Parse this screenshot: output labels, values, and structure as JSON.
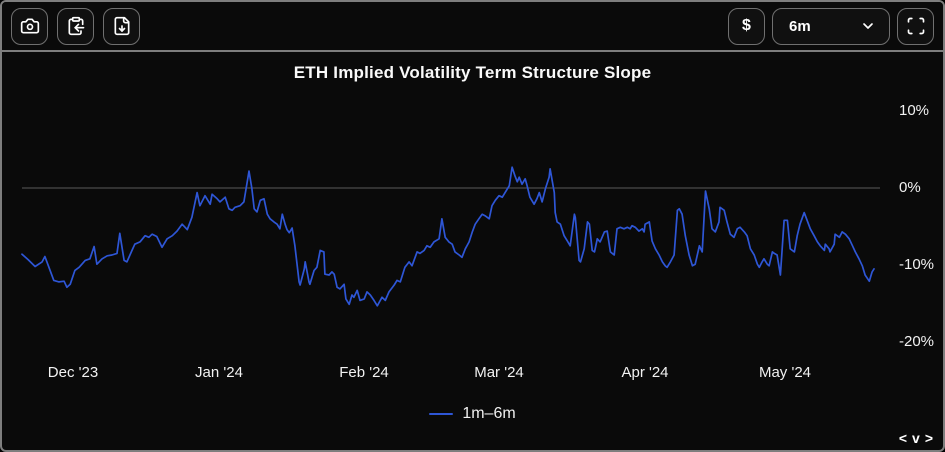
{
  "toolbar": {
    "camera_icon": "camera-icon",
    "copy_icon": "clipboard-copy-icon",
    "download_icon": "file-download-icon",
    "currency_label": "$",
    "range_select": {
      "value": "6m"
    },
    "fullscreen_icon": "fullscreen-scan-icon"
  },
  "pager": {
    "prev_label": "<",
    "collapse_label": "v",
    "next_label": ">"
  },
  "colors": {
    "line": "#2e56d6",
    "zero_line": "#5a5a5a",
    "frame_border": "#7e7e7e",
    "background": "#000000"
  },
  "chart_data": {
    "type": "line",
    "title": "ETH Implied Volatility Term Structure Slope",
    "y_unit": "%",
    "ylim": [
      -22,
      12
    ],
    "grid": "zero-line-only",
    "legend_position": "bottom-center",
    "legend_label": "1m–6m",
    "x_domain_days": [
      0,
      182
    ],
    "x_ticks": [
      {
        "label": "Dec '23",
        "day": 11
      },
      {
        "label": "Jan '24",
        "day": 42
      },
      {
        "label": "Feb '24",
        "day": 73
      },
      {
        "label": "Mar '24",
        "day": 102
      },
      {
        "label": "Apr '24",
        "day": 133
      },
      {
        "label": "May '24",
        "day": 163
      }
    ],
    "y_ticks": [
      {
        "label": "10%",
        "value": 10
      },
      {
        "label": "0%",
        "value": 0
      },
      {
        "label": "-10%",
        "value": -10
      },
      {
        "label": "-20%",
        "value": -20
      }
    ],
    "series": [
      {
        "name": "1m–6m",
        "color": "#2e56d6",
        "points": [
          [
            0,
            -8.6
          ],
          [
            1.3,
            -9.3
          ],
          [
            2.8,
            -10.2
          ],
          [
            4.3,
            -9.6
          ],
          [
            4.9,
            -8.9
          ],
          [
            6,
            -10.7
          ],
          [
            6.8,
            -12
          ],
          [
            7.9,
            -12.2
          ],
          [
            9,
            -12.1
          ],
          [
            9.6,
            -12.9
          ],
          [
            10.3,
            -12.5
          ],
          [
            11.3,
            -10.7
          ],
          [
            12.2,
            -10.3
          ],
          [
            12.8,
            -9.9
          ],
          [
            13.5,
            -9.4
          ],
          [
            14.5,
            -9.2
          ],
          [
            15.4,
            -7.6
          ],
          [
            16,
            -9.9
          ],
          [
            17.1,
            -9.2
          ],
          [
            18.2,
            -8.8
          ],
          [
            19.2,
            -8.7
          ],
          [
            20.3,
            -8.5
          ],
          [
            20.9,
            -5.9
          ],
          [
            21.8,
            -9.4
          ],
          [
            22.4,
            -9.6
          ],
          [
            23.5,
            -8.1
          ],
          [
            24.1,
            -7.3
          ],
          [
            25.2,
            -7
          ],
          [
            26.3,
            -6.2
          ],
          [
            27.1,
            -6.4
          ],
          [
            27.8,
            -6
          ],
          [
            28.8,
            -6.3
          ],
          [
            29.9,
            -7.7
          ],
          [
            31,
            -6.6
          ],
          [
            32.1,
            -6.2
          ],
          [
            33.1,
            -5.6
          ],
          [
            34.2,
            -4.7
          ],
          [
            35.3,
            -5.4
          ],
          [
            36.3,
            -3.8
          ],
          [
            37.4,
            -0.6
          ],
          [
            38,
            -2.3
          ],
          [
            39.1,
            -1
          ],
          [
            40.2,
            -2.1
          ],
          [
            40.6,
            -0.8
          ],
          [
            41.7,
            -1.4
          ],
          [
            42.3,
            -1.8
          ],
          [
            43.4,
            -1.2
          ],
          [
            44.2,
            -2.7
          ],
          [
            44.9,
            -2.9
          ],
          [
            45.5,
            -2.5
          ],
          [
            46.6,
            -2.3
          ],
          [
            47.4,
            -1.8
          ],
          [
            48.5,
            2.2
          ],
          [
            49.1,
            -0.1
          ],
          [
            49.6,
            -2.7
          ],
          [
            50.2,
            -3.1
          ],
          [
            50.9,
            -1.6
          ],
          [
            51.7,
            -1.4
          ],
          [
            52.4,
            -3.4
          ],
          [
            53,
            -4
          ],
          [
            53.8,
            -4.4
          ],
          [
            54.5,
            -4.7
          ],
          [
            55.1,
            -5.3
          ],
          [
            55.6,
            -3.4
          ],
          [
            56.2,
            -4.7
          ],
          [
            56.6,
            -5.4
          ],
          [
            57.1,
            -5.8
          ],
          [
            57.7,
            -5.2
          ],
          [
            58.3,
            -7.5
          ],
          [
            59.2,
            -12.2
          ],
          [
            59.4,
            -12.6
          ],
          [
            60.3,
            -10.5
          ],
          [
            60.5,
            -9.6
          ],
          [
            61.3,
            -12.2
          ],
          [
            61.5,
            -12.5
          ],
          [
            62.4,
            -10.7
          ],
          [
            63,
            -10.3
          ],
          [
            63.7,
            -8.1
          ],
          [
            64.5,
            -8.3
          ],
          [
            64.7,
            -11.2
          ],
          [
            65.6,
            -11.3
          ],
          [
            66.2,
            -10.9
          ],
          [
            66.7,
            -11.2
          ],
          [
            67.3,
            -12.9
          ],
          [
            67.9,
            -13.1
          ],
          [
            68.8,
            -12.5
          ],
          [
            69.2,
            -14.4
          ],
          [
            69.9,
            -15.1
          ],
          [
            70.5,
            -13.9
          ],
          [
            70.9,
            -14.2
          ],
          [
            71.6,
            -13.3
          ],
          [
            72.2,
            -14.6
          ],
          [
            73.1,
            -14.4
          ],
          [
            73.7,
            -13.5
          ],
          [
            74.4,
            -13.9
          ],
          [
            75.2,
            -14.6
          ],
          [
            75.9,
            -15.3
          ],
          [
            76.9,
            -14.2
          ],
          [
            77.6,
            -14.6
          ],
          [
            78.4,
            -13.5
          ],
          [
            79.5,
            -12.6
          ],
          [
            80.1,
            -12
          ],
          [
            80.8,
            -12.2
          ],
          [
            81.8,
            -10.3
          ],
          [
            82.7,
            -9.6
          ],
          [
            83.3,
            -10.1
          ],
          [
            84.4,
            -8.3
          ],
          [
            85,
            -8.5
          ],
          [
            85.9,
            -8.1
          ],
          [
            86.5,
            -7.5
          ],
          [
            87.2,
            -7.7
          ],
          [
            88,
            -7
          ],
          [
            89.1,
            -6.6
          ],
          [
            89.7,
            -4
          ],
          [
            90.4,
            -6.4
          ],
          [
            91.2,
            -7
          ],
          [
            91.9,
            -7.3
          ],
          [
            92.5,
            -8.3
          ],
          [
            93.4,
            -8.7
          ],
          [
            94,
            -9
          ],
          [
            94.7,
            -7.9
          ],
          [
            95.5,
            -7
          ],
          [
            96.2,
            -5.7
          ],
          [
            96.8,
            -4.7
          ],
          [
            97.6,
            -4
          ],
          [
            98.3,
            -3.4
          ],
          [
            98.9,
            -3.6
          ],
          [
            99.8,
            -4
          ],
          [
            100.4,
            -2.3
          ],
          [
            101.1,
            -1.6
          ],
          [
            101.9,
            -1
          ],
          [
            102.6,
            -1.2
          ],
          [
            103.2,
            -0.6
          ],
          [
            104.1,
            0.3
          ],
          [
            104.7,
            2.7
          ],
          [
            105.3,
            1.6
          ],
          [
            105.8,
            0.8
          ],
          [
            106.2,
            1.4
          ],
          [
            106.8,
            0.5
          ],
          [
            107.5,
            1.2
          ],
          [
            107.9,
            0.3
          ],
          [
            108.5,
            -1.2
          ],
          [
            109.4,
            -2.1
          ],
          [
            110,
            -1.4
          ],
          [
            110.5,
            -0.6
          ],
          [
            111.1,
            -1.8
          ],
          [
            111.8,
            -0.1
          ],
          [
            112.6,
            1.4
          ],
          [
            112.8,
            2.5
          ],
          [
            113.7,
            -0.6
          ],
          [
            113.9,
            -3.2
          ],
          [
            114.3,
            -4.4
          ],
          [
            115,
            -4.7
          ],
          [
            115.8,
            -6.2
          ],
          [
            116.5,
            -6.9
          ],
          [
            117.1,
            -7.5
          ],
          [
            118,
            -3.4
          ],
          [
            118.2,
            -3.8
          ],
          [
            119,
            -9.4
          ],
          [
            119.3,
            -9.6
          ],
          [
            120.1,
            -7.9
          ],
          [
            120.8,
            -4.4
          ],
          [
            121.2,
            -4.7
          ],
          [
            121.8,
            -8.1
          ],
          [
            122.3,
            -8.3
          ],
          [
            122.9,
            -6.6
          ],
          [
            123.5,
            -7
          ],
          [
            124.4,
            -5.7
          ],
          [
            125,
            -5.6
          ],
          [
            125.7,
            -8.3
          ],
          [
            126.5,
            -8.7
          ],
          [
            127.1,
            -5.3
          ],
          [
            127.8,
            -5.1
          ],
          [
            128.6,
            -5.3
          ],
          [
            129.3,
            -5.1
          ],
          [
            129.9,
            -5.3
          ],
          [
            130.3,
            -4.9
          ],
          [
            131,
            -5.1
          ],
          [
            131.8,
            -5.6
          ],
          [
            132.5,
            -5.3
          ],
          [
            132.9,
            -5.7
          ],
          [
            133.1,
            -4.7
          ],
          [
            134,
            -4.4
          ],
          [
            134.6,
            -6.9
          ],
          [
            135.3,
            -7.9
          ],
          [
            136.1,
            -8.7
          ],
          [
            136.8,
            -9.6
          ],
          [
            137.4,
            -10.1
          ],
          [
            137.8,
            -10.3
          ],
          [
            138.5,
            -9.6
          ],
          [
            139.3,
            -8.7
          ],
          [
            140,
            -2.9
          ],
          [
            140.4,
            -2.7
          ],
          [
            141,
            -3.4
          ],
          [
            141.7,
            -6.2
          ],
          [
            142.5,
            -8.7
          ],
          [
            143.2,
            -10.1
          ],
          [
            143.8,
            -9.9
          ],
          [
            144.7,
            -7.5
          ],
          [
            145.3,
            -8.3
          ],
          [
            146,
            -0.4
          ],
          [
            146.8,
            -2.7
          ],
          [
            147.4,
            -5.3
          ],
          [
            148.1,
            -5.7
          ],
          [
            148.9,
            -4.4
          ],
          [
            149.1,
            -2.5
          ],
          [
            150,
            -2.9
          ],
          [
            150.6,
            -4.4
          ],
          [
            151.3,
            -6
          ],
          [
            152.1,
            -6.4
          ],
          [
            152.8,
            -5.3
          ],
          [
            153.4,
            -5.1
          ],
          [
            154.3,
            -5.7
          ],
          [
            154.9,
            -6.2
          ],
          [
            155.6,
            -7.9
          ],
          [
            156.4,
            -8.7
          ],
          [
            157.1,
            -9.9
          ],
          [
            157.5,
            -10.3
          ],
          [
            158.1,
            -9.6
          ],
          [
            158.5,
            -9.2
          ],
          [
            159.2,
            -9.9
          ],
          [
            159.6,
            -10.1
          ],
          [
            160.3,
            -8.3
          ],
          [
            160.7,
            -8.5
          ],
          [
            161.3,
            -8.7
          ],
          [
            162,
            -11.3
          ],
          [
            162.8,
            -4.2
          ],
          [
            163.5,
            -4.2
          ],
          [
            164.1,
            -7.9
          ],
          [
            165,
            -8.3
          ],
          [
            165.6,
            -6.2
          ],
          [
            166.2,
            -4.7
          ],
          [
            167.1,
            -3.2
          ],
          [
            167.7,
            -4.2
          ],
          [
            168.4,
            -5.3
          ],
          [
            169.2,
            -6.2
          ],
          [
            169.9,
            -7
          ],
          [
            170.5,
            -7.5
          ],
          [
            171.4,
            -8.1
          ],
          [
            171.6,
            -7.3
          ],
          [
            172.4,
            -7.9
          ],
          [
            172.6,
            -8.3
          ],
          [
            173.5,
            -7.3
          ],
          [
            173.7,
            -6
          ],
          [
            174.6,
            -6.4
          ],
          [
            175.2,
            -5.7
          ],
          [
            175.9,
            -6
          ],
          [
            176.7,
            -6.6
          ],
          [
            177.4,
            -7.5
          ],
          [
            178,
            -8.3
          ],
          [
            178.8,
            -9.2
          ],
          [
            179.5,
            -10.1
          ],
          [
            180.1,
            -11.3
          ],
          [
            181,
            -12.1
          ],
          [
            181.6,
            -10.9
          ],
          [
            182,
            -10.5
          ]
        ]
      }
    ]
  }
}
